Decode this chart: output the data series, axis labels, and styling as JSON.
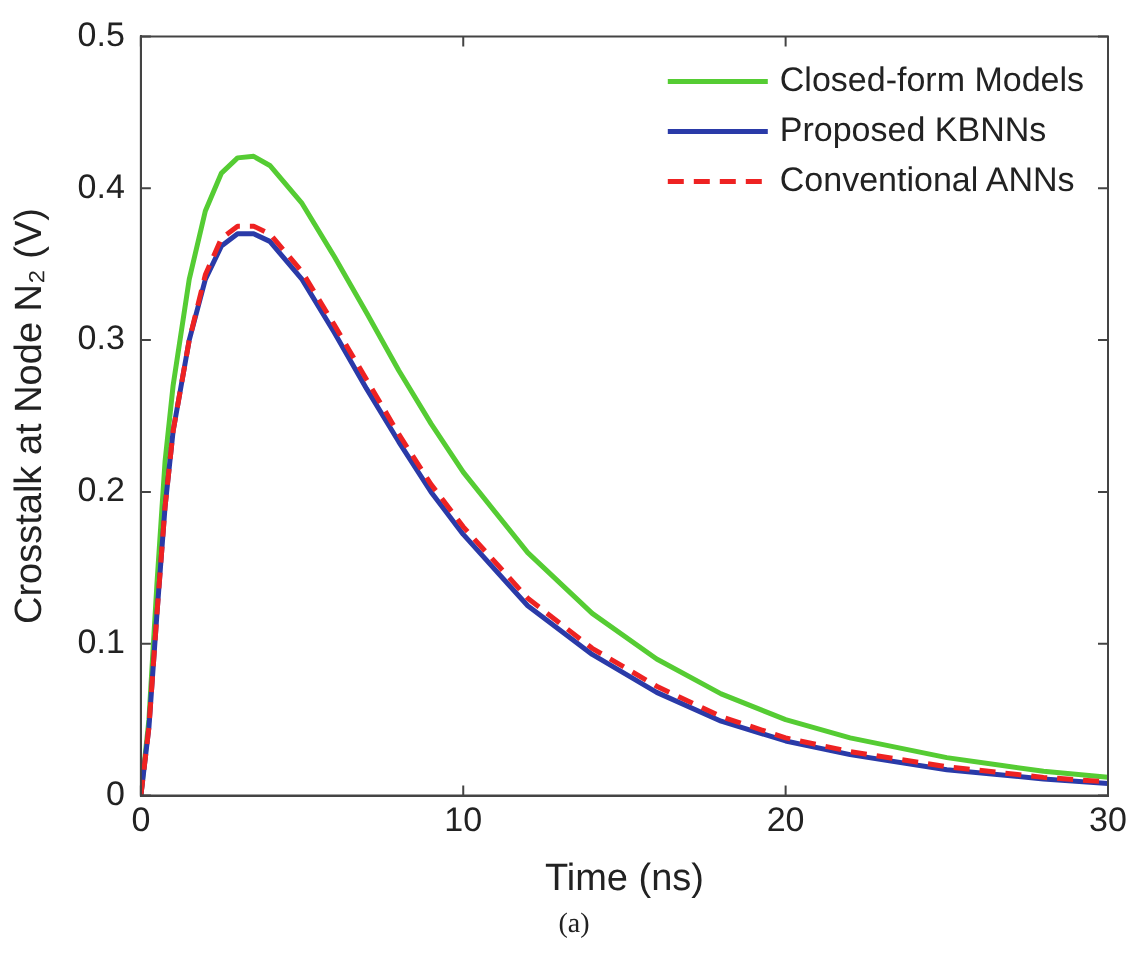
{
  "chart_data": {
    "type": "line",
    "xlabel": "Time (ns)",
    "ylabel": "Crosstalk at Node N₂ (V)",
    "annotations": [
      "(a)"
    ],
    "x": [
      0,
      0.25,
      0.5,
      0.75,
      1,
      1.5,
      2,
      2.5,
      3,
      3.5,
      4,
      5,
      6,
      7,
      8,
      9,
      10,
      12,
      14,
      16,
      18,
      20,
      22,
      25,
      28,
      30
    ],
    "xlim": [
      0,
      30
    ],
    "xticks": [
      0,
      10,
      20,
      30
    ],
    "ylim": [
      0,
      0.5
    ],
    "yticks": [
      0,
      0.1,
      0.2,
      0.3,
      0.4,
      0.5
    ],
    "grid": false,
    "legend": "top right",
    "marker": "none",
    "series": [
      {
        "name": "Closed-form Models",
        "color": "#55cc33",
        "line_style": "solid",
        "values": [
          0,
          0.05,
          0.14,
          0.22,
          0.27,
          0.34,
          0.385,
          0.41,
          0.42,
          0.421,
          0.415,
          0.39,
          0.355,
          0.318,
          0.28,
          0.245,
          0.213,
          0.16,
          0.12,
          0.09,
          0.067,
          0.05,
          0.038,
          0.025,
          0.016,
          0.012
        ]
      },
      {
        "name": "Proposed KBNNs",
        "color": "#2a3aa8",
        "line_style": "solid",
        "values": [
          0,
          0.045,
          0.12,
          0.19,
          0.24,
          0.3,
          0.34,
          0.362,
          0.37,
          0.37,
          0.365,
          0.34,
          0.305,
          0.268,
          0.233,
          0.2,
          0.172,
          0.125,
          0.093,
          0.068,
          0.049,
          0.036,
          0.027,
          0.017,
          0.011,
          0.008
        ]
      },
      {
        "name": "Conventional ANNs",
        "color": "#ee2222",
        "line_style": "dashed",
        "values": [
          0,
          0.045,
          0.12,
          0.19,
          0.24,
          0.3,
          0.343,
          0.367,
          0.375,
          0.375,
          0.37,
          0.345,
          0.31,
          0.274,
          0.238,
          0.205,
          0.177,
          0.13,
          0.097,
          0.072,
          0.052,
          0.038,
          0.029,
          0.019,
          0.012,
          0.009
        ]
      }
    ]
  }
}
